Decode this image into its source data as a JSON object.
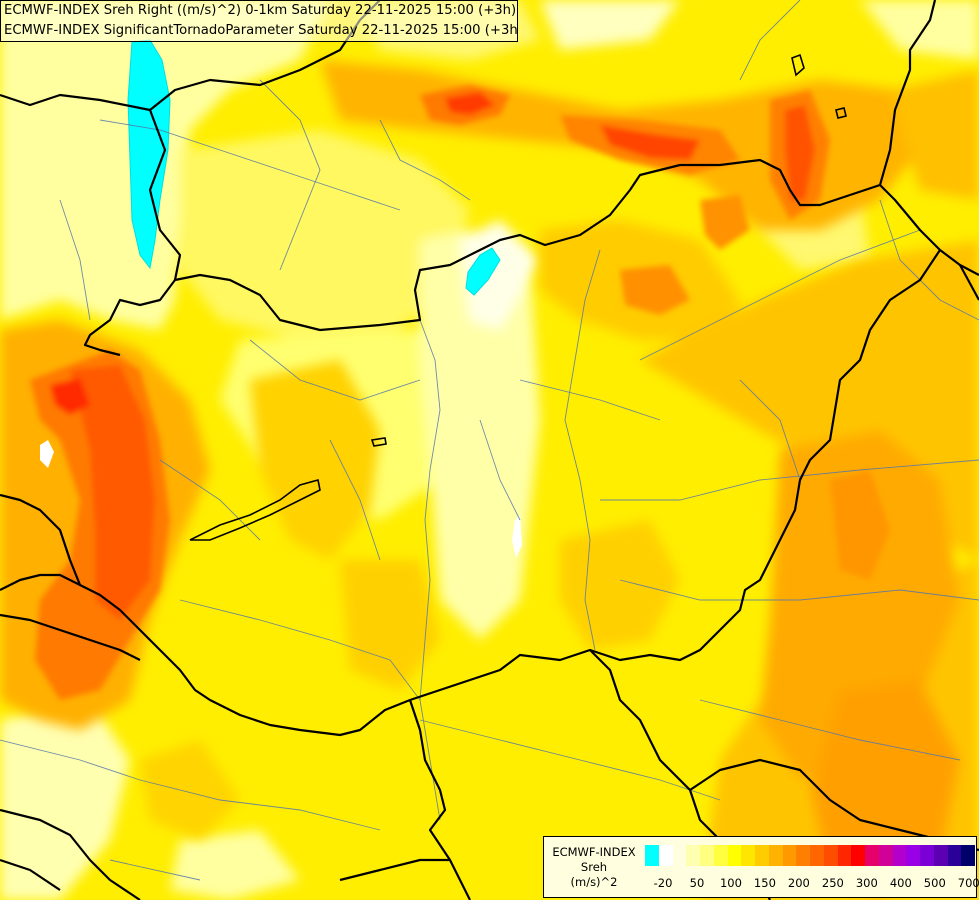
{
  "header": {
    "line1": "ECMWF-INDEX Sreh Right ((m/s)^2) 0-1km Saturday 22-11-2025 15:00 (+3h)",
    "line2": "ECMWF-INDEX SignificantTornadoParameter Saturday 22-11-2025 15:00 (+3h)"
  },
  "legend": {
    "title1": "ECMWF-INDEX",
    "title2": "Sreh",
    "title3": "(m/s)^2",
    "ticks": [
      "-20",
      "50",
      "100",
      "150",
      "200",
      "250",
      "300",
      "400",
      "500",
      "700"
    ],
    "colors": [
      "#00ffff",
      "#ffffff",
      "#ffffe0",
      "#ffffb0",
      "#ffff80",
      "#ffff40",
      "#ffff00",
      "#ffe600",
      "#ffcc00",
      "#ffb300",
      "#ff9900",
      "#ff8000",
      "#ff6600",
      "#ff4d00",
      "#ff2600",
      "#ff0000",
      "#e6006b",
      "#d10099",
      "#b300cc",
      "#9900e6",
      "#7a00d6",
      "#5c00b3",
      "#2a0099",
      "#00006b"
    ]
  }
}
